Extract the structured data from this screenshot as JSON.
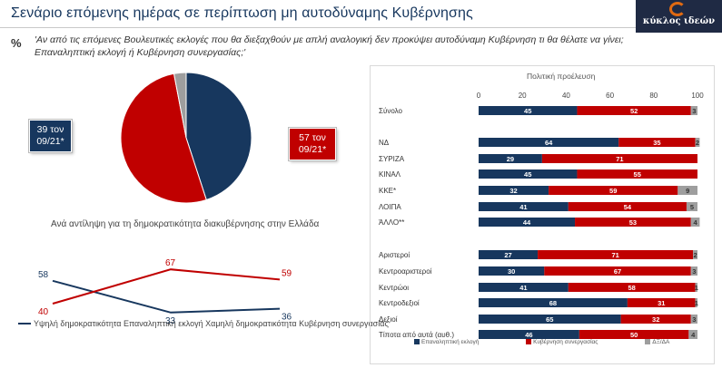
{
  "header": {
    "title": "Σενάριο επόμενης ημέρας σε περίπτωση μη αυτοδύναμης Κυβέρνησης",
    "logo_text": "κύκλος ιδεών"
  },
  "question": {
    "symbol": "%",
    "text": "'Αν από τις επόμενες Βουλευτικές εκλογές που θα διεξαχθούν με απλή αναλογική δεν προκύψει αυτοδύναμη Κυβέρνηση τι θα θέλατε να γίνει; Επαναληπτική εκλογή ή Κυβέρνηση συνεργασίας;'"
  },
  "callouts": {
    "blue": "39 τον 09/21*",
    "red": "57 τον 09/21*"
  },
  "colors": {
    "blue": "#17375e",
    "red": "#c00000",
    "gray": "#9e9e9e"
  },
  "chart_data": [
    {
      "type": "pie",
      "categories": [
        "Επαναληπτική εκλογή",
        "Κυβέρνηση συνεργασίας",
        "ΔΞ/ΔΑ"
      ],
      "values": [
        45,
        52,
        3
      ]
    },
    {
      "type": "line",
      "title": "Ανά αντίληψη για τη δημοκρατικότητα διακυβέρνησης στην Ελλάδα",
      "categories": [
        "Υψηλή δημοκρατικότητα",
        "Χαμηλή δημοκρατικότητα",
        ""
      ],
      "series": [
        {
          "name": "Επαναληπτική εκλογή",
          "values": [
            58,
            33,
            36
          ]
        },
        {
          "name": "Κυβέρνηση συνεργασίας",
          "values": [
            40,
            67,
            59
          ]
        }
      ],
      "legend_text": "Υψηλή δημοκρατικότητα    Επαναληπτική εκλογή    Χαμηλή δημοκρατικότητα    Κυβέρνηση συνεργασίας"
    },
    {
      "type": "bar",
      "title": "Πολιτική προέλευση",
      "xlim": [
        0,
        100
      ],
      "ticks": [
        0,
        20,
        40,
        60,
        80,
        100
      ],
      "categories": [
        "Σύνολο",
        "ΝΔ",
        "ΣΥΡΙΖΑ",
        "ΚΙΝΑΛ",
        "ΚΚΕ*",
        "ΛΟΙΠΑ",
        "ΆΛΛΟ**",
        "Αριστεροί",
        "Κεντροαριστεροί",
        "Κεντρώοι",
        "Κεντροδεξιοί",
        "Δεξιοί",
        "Τίποτα από αυτά (αυθ.)"
      ],
      "series": [
        {
          "name": "Επαναληπτική εκλογή",
          "values": [
            45,
            64,
            29,
            45,
            32,
            41,
            44,
            27,
            30,
            41,
            68,
            65,
            46
          ]
        },
        {
          "name": "Κυβέρνηση συνεργασίας",
          "values": [
            52,
            35,
            71,
            55,
            59,
            54,
            53,
            71,
            67,
            58,
            31,
            32,
            50
          ]
        },
        {
          "name": "ΔΞ/ΔΑ",
          "values": [
            3,
            2,
            0,
            0,
            9,
            5,
            4,
            2,
            3,
            1,
            1,
            3,
            4
          ]
        }
      ]
    }
  ]
}
